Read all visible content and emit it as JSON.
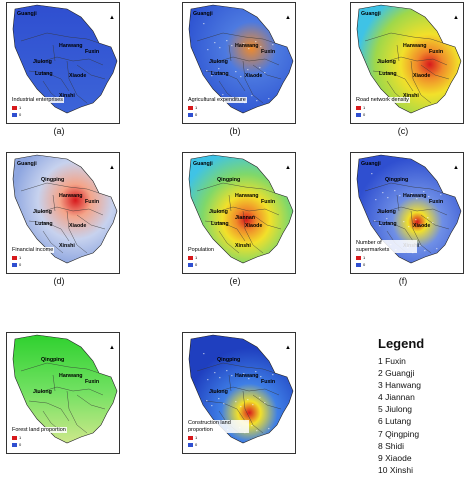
{
  "panels": [
    {
      "id": "a",
      "caption": "(a)",
      "title": "Industrial enterprises",
      "labels": [
        "Guangji",
        "Hanwang",
        "Fuxin",
        "Jiulong",
        "Lutang",
        "Xiaode",
        "Xinshi"
      ],
      "scheme": "industrial"
    },
    {
      "id": "b",
      "caption": "(b)",
      "title": "Agricultural expenditure",
      "labels": [
        "Guangji",
        "Hanwang",
        "Fuxin",
        "Jiulong",
        "Lutang",
        "Xiaode"
      ],
      "scheme": "agri"
    },
    {
      "id": "c",
      "caption": "(c)",
      "title": "Road network density",
      "labels": [
        "Guangji",
        "Hanwang",
        "Fuxin",
        "Jiulong",
        "Lutang",
        "Xiaode",
        "Xinshi"
      ],
      "scheme": "road"
    },
    {
      "id": "d",
      "caption": "(d)",
      "title": "Financial income",
      "labels": [
        "Qingping",
        "Hanwang",
        "Fuxin",
        "Jiulong",
        "Guangji",
        "Lutang",
        "Xiaode",
        "Xinshi"
      ],
      "scheme": "financial"
    },
    {
      "id": "e",
      "caption": "(e)",
      "title": "Population",
      "labels": [
        "Qingping",
        "Hanwang",
        "Fuxin",
        "Jiulong",
        "Guangji",
        "Lutang",
        "Xiaode",
        "Xinshi",
        "Jiannan"
      ],
      "scheme": "population"
    },
    {
      "id": "f",
      "caption": "(f)",
      "title": "Number of supermarkets",
      "labels": [
        "Qingping",
        "Hanwang",
        "Fuxin",
        "Jiulong",
        "Guangji",
        "Lutang",
        "Xiaode",
        "Xinshi"
      ],
      "scheme": "supermarket"
    },
    {
      "id": "g",
      "caption": "",
      "title": "Forest land proportion",
      "labels": [
        "Qingping",
        "Hanwang",
        "Fuxin",
        "Jiulong"
      ],
      "scheme": "forest"
    },
    {
      "id": "h",
      "caption": "",
      "title": "Construction land proportion",
      "labels": [
        "Qingping",
        "Hanwang",
        "Fuxin",
        "Jiulong"
      ],
      "scheme": "construction"
    }
  ],
  "legend": {
    "title": "Legend",
    "items": [
      "1 Fuxin",
      "2 Guangji",
      "3 Hanwang",
      "4 Jiannan",
      "5 Jiulong",
      "6 Lutang",
      "7 Qingping",
      "8 Shidi",
      "9 Xiaode",
      "10 Xinshi"
    ]
  },
  "mini_legend": {
    "high": "1",
    "low": "0"
  },
  "colors": {
    "deep_blue": "#1f3fbf",
    "yellow": "#f2e02a",
    "red": "#d7191c",
    "green": "#3fd13f",
    "light_blue": "#9fb8e6",
    "cyan": "#3fc3e6"
  }
}
